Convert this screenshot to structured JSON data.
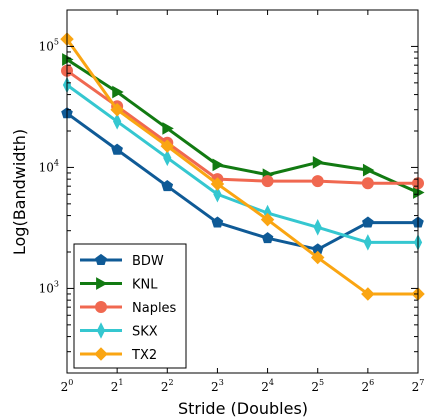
{
  "chart_data": {
    "type": "line",
    "xlabel": "Stride (Doubles)",
    "ylabel": "Log(Bandwidth)",
    "x_scale": "log2",
    "y_scale": "log10",
    "x": [
      1,
      2,
      4,
      8,
      16,
      32,
      64,
      128
    ],
    "x_tick_base": "2",
    "x_tick_exponents": [
      "0",
      "1",
      "2",
      "3",
      "4",
      "5",
      "6",
      "7"
    ],
    "y_tick_base": "10",
    "y_tick_exponents": [
      "3",
      "4",
      "5"
    ],
    "y_tick_values": [
      1000,
      10000,
      100000
    ],
    "xlim": [
      1,
      128
    ],
    "ylim": [
      200,
      200000
    ],
    "grid": false,
    "legend_position": "bottom-left",
    "series": [
      {
        "name": "BDW",
        "color": "#0f5a96",
        "marker": "pentagon",
        "values": [
          28000,
          14000,
          7000,
          3500,
          2600,
          2100,
          3500,
          3500
        ]
      },
      {
        "name": "KNL",
        "color": "#127a12",
        "marker": "triangle-right",
        "values": [
          78000,
          42000,
          21000,
          10500,
          8700,
          11000,
          9500,
          6200
        ]
      },
      {
        "name": "Naples",
        "color": "#f06850",
        "marker": "circle",
        "values": [
          63000,
          32000,
          16000,
          8000,
          7700,
          7700,
          7400,
          7400
        ]
      },
      {
        "name": "SKX",
        "color": "#35c7d0",
        "marker": "thin-diamond",
        "values": [
          48000,
          24000,
          12000,
          6000,
          4200,
          3200,
          2400,
          2400
        ]
      },
      {
        "name": "TX2",
        "color": "#faa512",
        "marker": "diamond",
        "values": [
          115000,
          30000,
          15000,
          7300,
          3700,
          1800,
          900,
          900
        ]
      }
    ]
  }
}
